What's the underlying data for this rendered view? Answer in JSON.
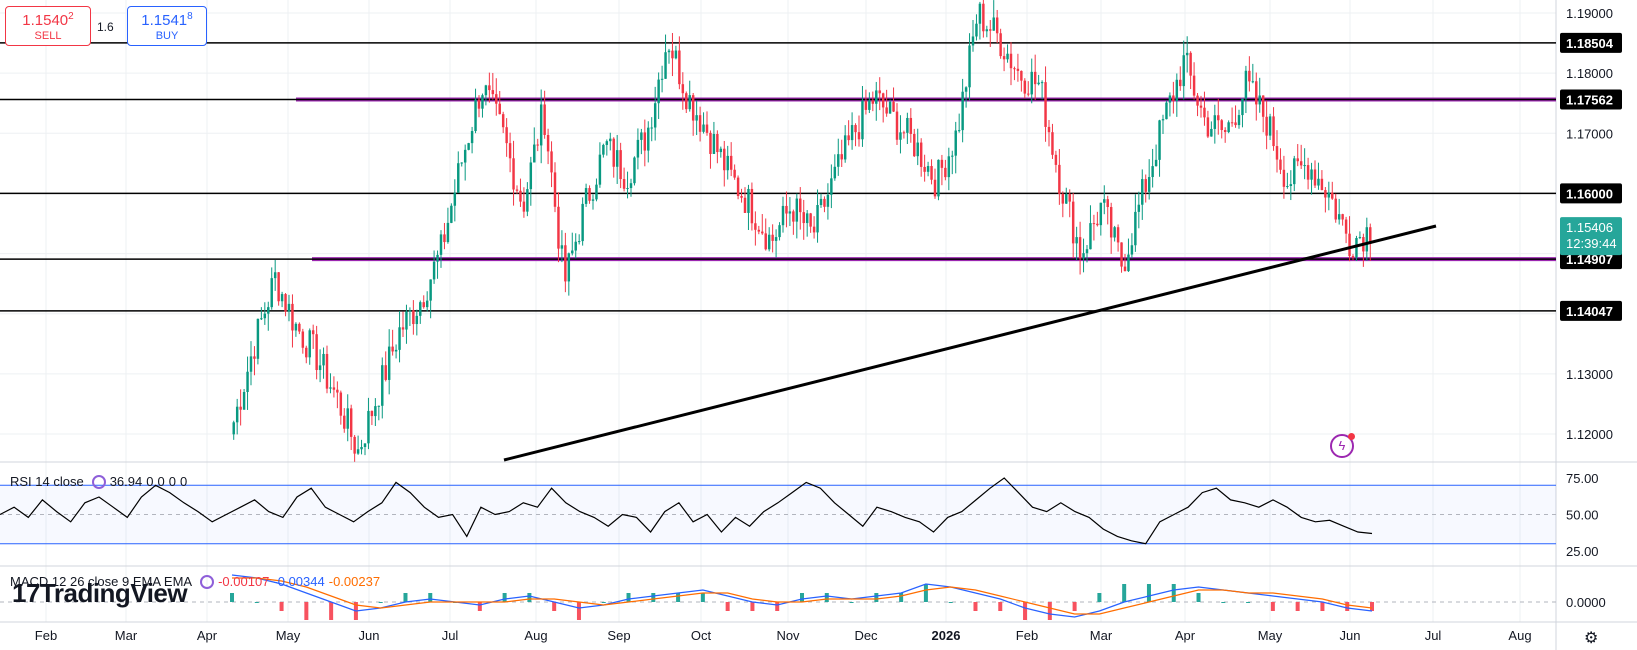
{
  "trade": {
    "sell_price": "1.1540",
    "sell_price_sup": "2",
    "sell_label": "SELL",
    "spread": "1.6",
    "buy_price": "1.1541",
    "buy_price_sup": "8",
    "buy_label": "BUY"
  },
  "chart_data": [
    {
      "type": "candlestick",
      "symbol_price_now": "1.15406",
      "countdown": "12:39:44",
      "x_axis_labels": [
        "Feb",
        "Mar",
        "Apr",
        "May",
        "Jun",
        "Jul",
        "Aug",
        "Sep",
        "Oct",
        "Nov",
        "Dec",
        "2026",
        "Feb",
        "Mar",
        "Apr",
        "May",
        "Jun",
        "Jul",
        "Aug"
      ],
      "y_ticks": [
        "1.19000",
        "1.18000",
        "1.17000",
        "1.16000",
        "1.13000",
        "1.12000"
      ],
      "ylim": [
        1.114,
        1.192
      ],
      "horizontal_levels": [
        {
          "label": "1.18504",
          "value": 1.18504,
          "style": "black"
        },
        {
          "label": "1.17562",
          "value": 1.17562,
          "style": "purple"
        },
        {
          "label": "1.16000",
          "value": 1.16,
          "style": "black"
        },
        {
          "label": "1.14907",
          "value": 1.14907,
          "style": "purple"
        },
        {
          "label": "1.14047",
          "value": 1.14047,
          "style": "black"
        }
      ],
      "trendline": {
        "from": [
          "late Jul",
          1.1146
        ],
        "to": [
          "late Jun",
          1.1535
        ]
      },
      "price_path": [
        [
          "Apr",
          1.122
        ],
        [
          "mid Apr",
          1.135
        ],
        [
          "Apr",
          1.146
        ],
        [
          "late Apr",
          1.138
        ],
        [
          "early May",
          1.133
        ],
        [
          "mid May",
          1.126
        ],
        [
          "May",
          1.117
        ],
        [
          "late May",
          1.127
        ],
        [
          "early Jun",
          1.137
        ],
        [
          "mid Jun",
          1.142
        ],
        [
          "late Jun",
          1.15
        ],
        [
          "early Jul",
          1.165
        ],
        [
          "Jul",
          1.178
        ],
        [
          "mid Jul",
          1.17
        ],
        [
          "late Jul",
          1.158
        ],
        [
          "Jul",
          1.174
        ],
        [
          "early Aug",
          1.145
        ],
        [
          "Aug",
          1.158
        ],
        [
          "mid Aug",
          1.168
        ],
        [
          "late Aug",
          1.163
        ],
        [
          "Sep",
          1.17
        ],
        [
          "mid Sep",
          1.186
        ],
        [
          "late Sep",
          1.176
        ],
        [
          "early Oct",
          1.17
        ],
        [
          "Oct",
          1.163
        ],
        [
          "late Oct",
          1.158
        ],
        [
          "early Nov",
          1.152
        ],
        [
          "mid Nov",
          1.158
        ],
        [
          "late Nov",
          1.153
        ],
        [
          "early Dec",
          1.162
        ],
        [
          "Dec",
          1.17
        ],
        [
          "mid Dec",
          1.176
        ],
        [
          "late Dec",
          1.172
        ],
        [
          "early Jan",
          1.168
        ],
        [
          "Jan",
          1.162
        ],
        [
          "mid Jan",
          1.17
        ],
        [
          "late Jan",
          1.19
        ],
        [
          "Feb",
          1.186
        ],
        [
          "mid Feb",
          1.18
        ],
        [
          "late Feb",
          1.178
        ],
        [
          "early Mar",
          1.162
        ],
        [
          "Mar",
          1.15
        ],
        [
          "mid Mar",
          1.158
        ],
        [
          "late Mar",
          1.148
        ],
        [
          "early Apr",
          1.16
        ],
        [
          "Apr",
          1.172
        ],
        [
          "mid Apr",
          1.182
        ],
        [
          "late Apr",
          1.172
        ],
        [
          "early May",
          1.17
        ],
        [
          "May",
          1.178
        ],
        [
          "mid May",
          1.172
        ],
        [
          "late May",
          1.162
        ],
        [
          "early Jun",
          1.165
        ],
        [
          "Jun",
          1.16
        ],
        [
          "Jun",
          1.152
        ],
        [
          "Jun",
          1.154
        ]
      ]
    },
    {
      "type": "line",
      "name": "RSI 14 close",
      "value": "36.94",
      "extra_values": [
        "0",
        "0",
        "0",
        "0"
      ],
      "y_ticks": [
        "75.00",
        "50.00",
        "25.00"
      ],
      "ylim": [
        20,
        80
      ],
      "band": [
        30,
        70
      ],
      "values": [
        50,
        55,
        48,
        60,
        52,
        45,
        58,
        62,
        55,
        48,
        62,
        70,
        65,
        58,
        52,
        45,
        50,
        55,
        60,
        52,
        48,
        62,
        68,
        55,
        50,
        45,
        52,
        58,
        72,
        65,
        55,
        48,
        50,
        35,
        55,
        50,
        52,
        58,
        55,
        68,
        58,
        52,
        48,
        42,
        50,
        48,
        38,
        52,
        58,
        45,
        50,
        38,
        48,
        42,
        52,
        58,
        65,
        72,
        68,
        58,
        50,
        42,
        55,
        52,
        48,
        45,
        38,
        48,
        52,
        60,
        68,
        75,
        65,
        55,
        52,
        58,
        52,
        48,
        40,
        35,
        32,
        30,
        45,
        50,
        55,
        65,
        68,
        60,
        58,
        55,
        60,
        55,
        48,
        45,
        46,
        42,
        38,
        37
      ]
    },
    {
      "type": "histogram-line",
      "name": "MACD 12 26 close 9 EMA EMA",
      "values_text": [
        "-0.00107",
        "-0.00344",
        "-0.00237"
      ],
      "value_colors": [
        "#f23645",
        "#2962ff",
        "#ff6d00"
      ],
      "y_ticks": [
        "0.0000"
      ],
      "ylim": [
        -0.006,
        0.01
      ],
      "macd": [
        0.009,
        0.008,
        0.006,
        0.003,
        0.0,
        -0.003,
        -0.002,
        0.0,
        0.001,
        0.0,
        -0.001,
        0.001,
        0.002,
        0.0,
        -0.002,
        -0.001,
        0.001,
        0.002,
        0.003,
        0.004,
        0.002,
        0.0,
        -0.001,
        0.001,
        0.002,
        0.001,
        0.002,
        0.003,
        0.006,
        0.005,
        0.003,
        0.001,
        -0.002,
        -0.004,
        -0.005,
        -0.003,
        0.0,
        0.002,
        0.004,
        0.005,
        0.004,
        0.003,
        0.002,
        0.001,
        0.0,
        -0.002,
        -0.003
      ],
      "signal": [
        0.008,
        0.008,
        0.007,
        0.005,
        0.002,
        -0.001,
        -0.002,
        -0.001,
        0.0,
        0.0,
        0.0,
        0.0,
        0.001,
        0.001,
        0.0,
        -0.001,
        0.0,
        0.001,
        0.002,
        0.003,
        0.003,
        0.001,
        0.0,
        0.0,
        0.001,
        0.001,
        0.001,
        0.002,
        0.004,
        0.005,
        0.004,
        0.002,
        0.0,
        -0.002,
        -0.004,
        -0.004,
        -0.002,
        0.0,
        0.002,
        0.004,
        0.004,
        0.003,
        0.003,
        0.002,
        0.001,
        -0.001,
        -0.002
      ]
    }
  ],
  "branding": {
    "logo": "TradingView",
    "logo_mark": "17"
  },
  "icons": {
    "cycle": "cycle-icon",
    "flash": "flash-icon",
    "settings": "settings-icon"
  },
  "colors": {
    "up": "#089981",
    "down": "#f23645",
    "purple": "#9c27b0",
    "band": "#2962ff",
    "price_label": "#26a69a"
  }
}
